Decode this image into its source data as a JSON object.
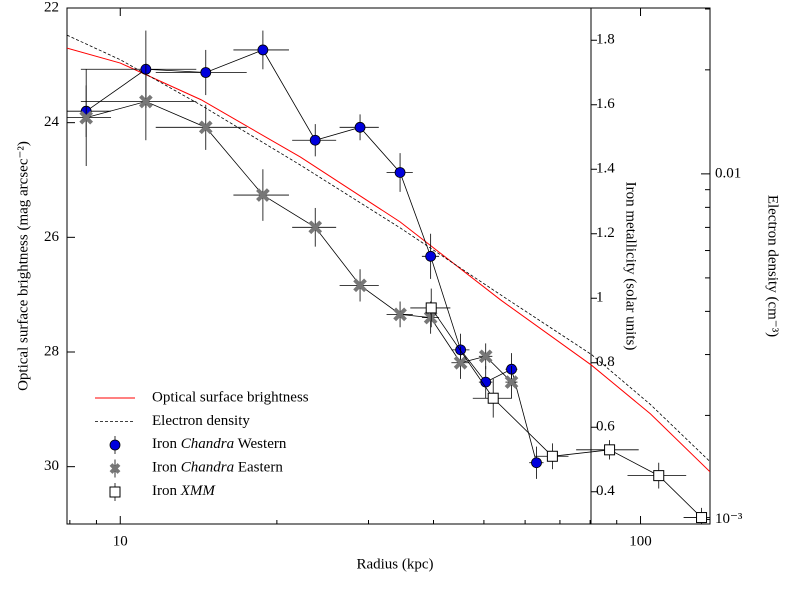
{
  "chart_data": {
    "type": "scatter",
    "xlabel": "Radius (kpc)",
    "ylabel": "Optical surface brightness (mag arcsec⁻²)",
    "y2label": "Iron metallicity (solar units)",
    "y3label": "Electron density (cm⁻³)",
    "xscale": "log",
    "xlim": [
      7.9,
      136
    ],
    "xticks": [
      10,
      100
    ],
    "xminorticks": [
      8,
      9,
      20,
      30,
      40,
      50,
      60,
      70,
      80,
      90
    ],
    "ylim": [
      31,
      22
    ],
    "yticks": [
      22,
      24,
      26,
      28,
      30
    ],
    "y2lim": [
      0.3,
      1.9
    ],
    "y2ticks": [
      0.4,
      0.6,
      0.8,
      1,
      1.2,
      1.4,
      1.6,
      1.8
    ],
    "y3scale": "log",
    "y3lim": [
      0.00097,
      0.0302
    ],
    "y3ticks": [
      {
        "value": 0.001,
        "label": "10⁻³"
      },
      0.01
    ],
    "y3minorticks": [
      0.002,
      0.003,
      0.004,
      0.005,
      0.006,
      0.007,
      0.008,
      0.009,
      0.02,
      0.03
    ],
    "legend": "lower left",
    "series": [
      {
        "name": "Optical surface brightness",
        "color": "#ff0000",
        "style": "solid",
        "axis": "y",
        "x": [
          7.9,
          10,
          14.3,
          22.2,
          34.5,
          53.8,
          80.5,
          104.5,
          136
        ],
        "values": [
          22.7,
          22.96,
          23.6,
          24.6,
          25.73,
          27.09,
          28.23,
          29.08,
          30.09
        ]
      },
      {
        "name": "Electron density",
        "color": "#000000",
        "style": "dashed",
        "axis": "y3",
        "x": [
          7.9,
          10,
          14.3,
          22.2,
          34.5,
          53.8,
          80.5,
          104.5,
          136
        ],
        "values": [
          0.0252,
          0.0214,
          0.0158,
          0.0106,
          0.00698,
          0.00447,
          0.003,
          0.00215,
          0.00147
        ]
      },
      {
        "name": "Iron Chandra Western",
        "color": "#0000dd",
        "marker": "circle",
        "axis": "y2",
        "x": [
          8.6,
          11.2,
          14.6,
          18.8,
          23.7,
          28.9,
          34.5,
          39.5,
          45.1,
          50.4,
          56.5,
          63.1
        ],
        "values": [
          1.58,
          1.71,
          1.7,
          1.77,
          1.49,
          1.53,
          1.39,
          1.13,
          0.84,
          0.74,
          0.78,
          0.49
        ],
        "xerr": [
          1.0,
          2.8,
          2.9,
          2.3,
          2.3,
          2.5,
          2.0,
          1.5,
          1.8,
          1.5,
          1.5,
          2.0
        ],
        "yerr": [
          0.08,
          0.12,
          0.07,
          0.06,
          0.05,
          0.04,
          0.06,
          0.07,
          0.05,
          0.05,
          0.05,
          0.05
        ]
      },
      {
        "name": "Iron Chandra Eastern",
        "color": "#777777",
        "marker": "x",
        "axis": "y2",
        "x": [
          8.6,
          11.2,
          14.6,
          18.8,
          23.7,
          28.9,
          34.5,
          39.5,
          45.1,
          50.4,
          56.5
        ],
        "values": [
          1.56,
          1.61,
          1.53,
          1.32,
          1.22,
          1.04,
          0.95,
          0.94,
          0.8,
          0.82,
          0.74
        ],
        "xerr": [
          1.0,
          2.8,
          2.9,
          2.3,
          2.3,
          2.5,
          2.0,
          1.5,
          1.8,
          1.5,
          1.5
        ],
        "yerr": [
          0.15,
          0.12,
          0.07,
          0.08,
          0.06,
          0.05,
          0.04,
          0.05,
          0.05,
          0.04,
          0.05
        ]
      },
      {
        "name": "Iron XMM",
        "color": "#ffffff",
        "marker": "square",
        "axis": "y2",
        "x": [
          39.6,
          52.1,
          67.7,
          87.2,
          108.4,
          131
        ],
        "values": [
          0.97,
          0.69,
          0.51,
          0.53,
          0.45,
          0.32
        ],
        "xerr": [
          3.5,
          4.5,
          5,
          12,
          14,
          10
        ],
        "yerr": [
          0.06,
          0.06,
          0.04,
          0.03,
          0.04,
          0.03
        ]
      }
    ]
  }
}
